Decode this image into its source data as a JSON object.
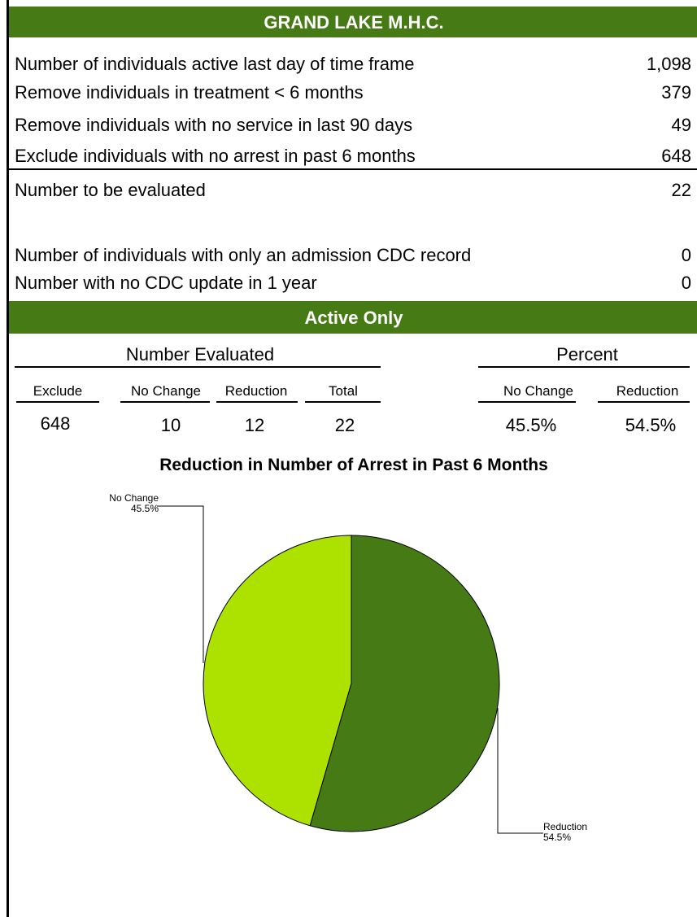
{
  "header": {
    "title": "GRAND LAKE M.H.C."
  },
  "rows": [
    {
      "label": "Number of individuals active last day of time frame",
      "value": "1,098"
    },
    {
      "label": "Remove individuals in treatment < 6 months",
      "value": "379"
    },
    {
      "label": "Remove individuals with no service in last 90 days",
      "value": "49"
    },
    {
      "label": "Exclude individuals with no arrest in past 6 months",
      "value": "648"
    },
    {
      "label": "Number to be evaluated",
      "value": "22"
    },
    {
      "label": "Number of individuals with only an admission CDC record",
      "value": "0"
    },
    {
      "label": "Number with no CDC update in 1 year",
      "value": "0"
    }
  ],
  "section": {
    "title": "Active Only",
    "groups": [
      "Number Evaluated",
      "Percent"
    ],
    "columns": [
      "Exclude",
      "No Change",
      "Reduction",
      "Total",
      "No Change",
      "Reduction"
    ],
    "values": [
      "648",
      "10",
      "12",
      "22",
      "45.5%",
      "54.5%"
    ]
  },
  "chart_data": {
    "type": "pie",
    "title": "Reduction in Number of Arrest in Past 6 Months",
    "categories": [
      "No Change",
      "Reduction"
    ],
    "values": [
      45.5,
      54.5
    ],
    "value_labels": [
      "45.5%",
      "54.5%"
    ],
    "colors": [
      "#ade100",
      "#467a14"
    ]
  }
}
